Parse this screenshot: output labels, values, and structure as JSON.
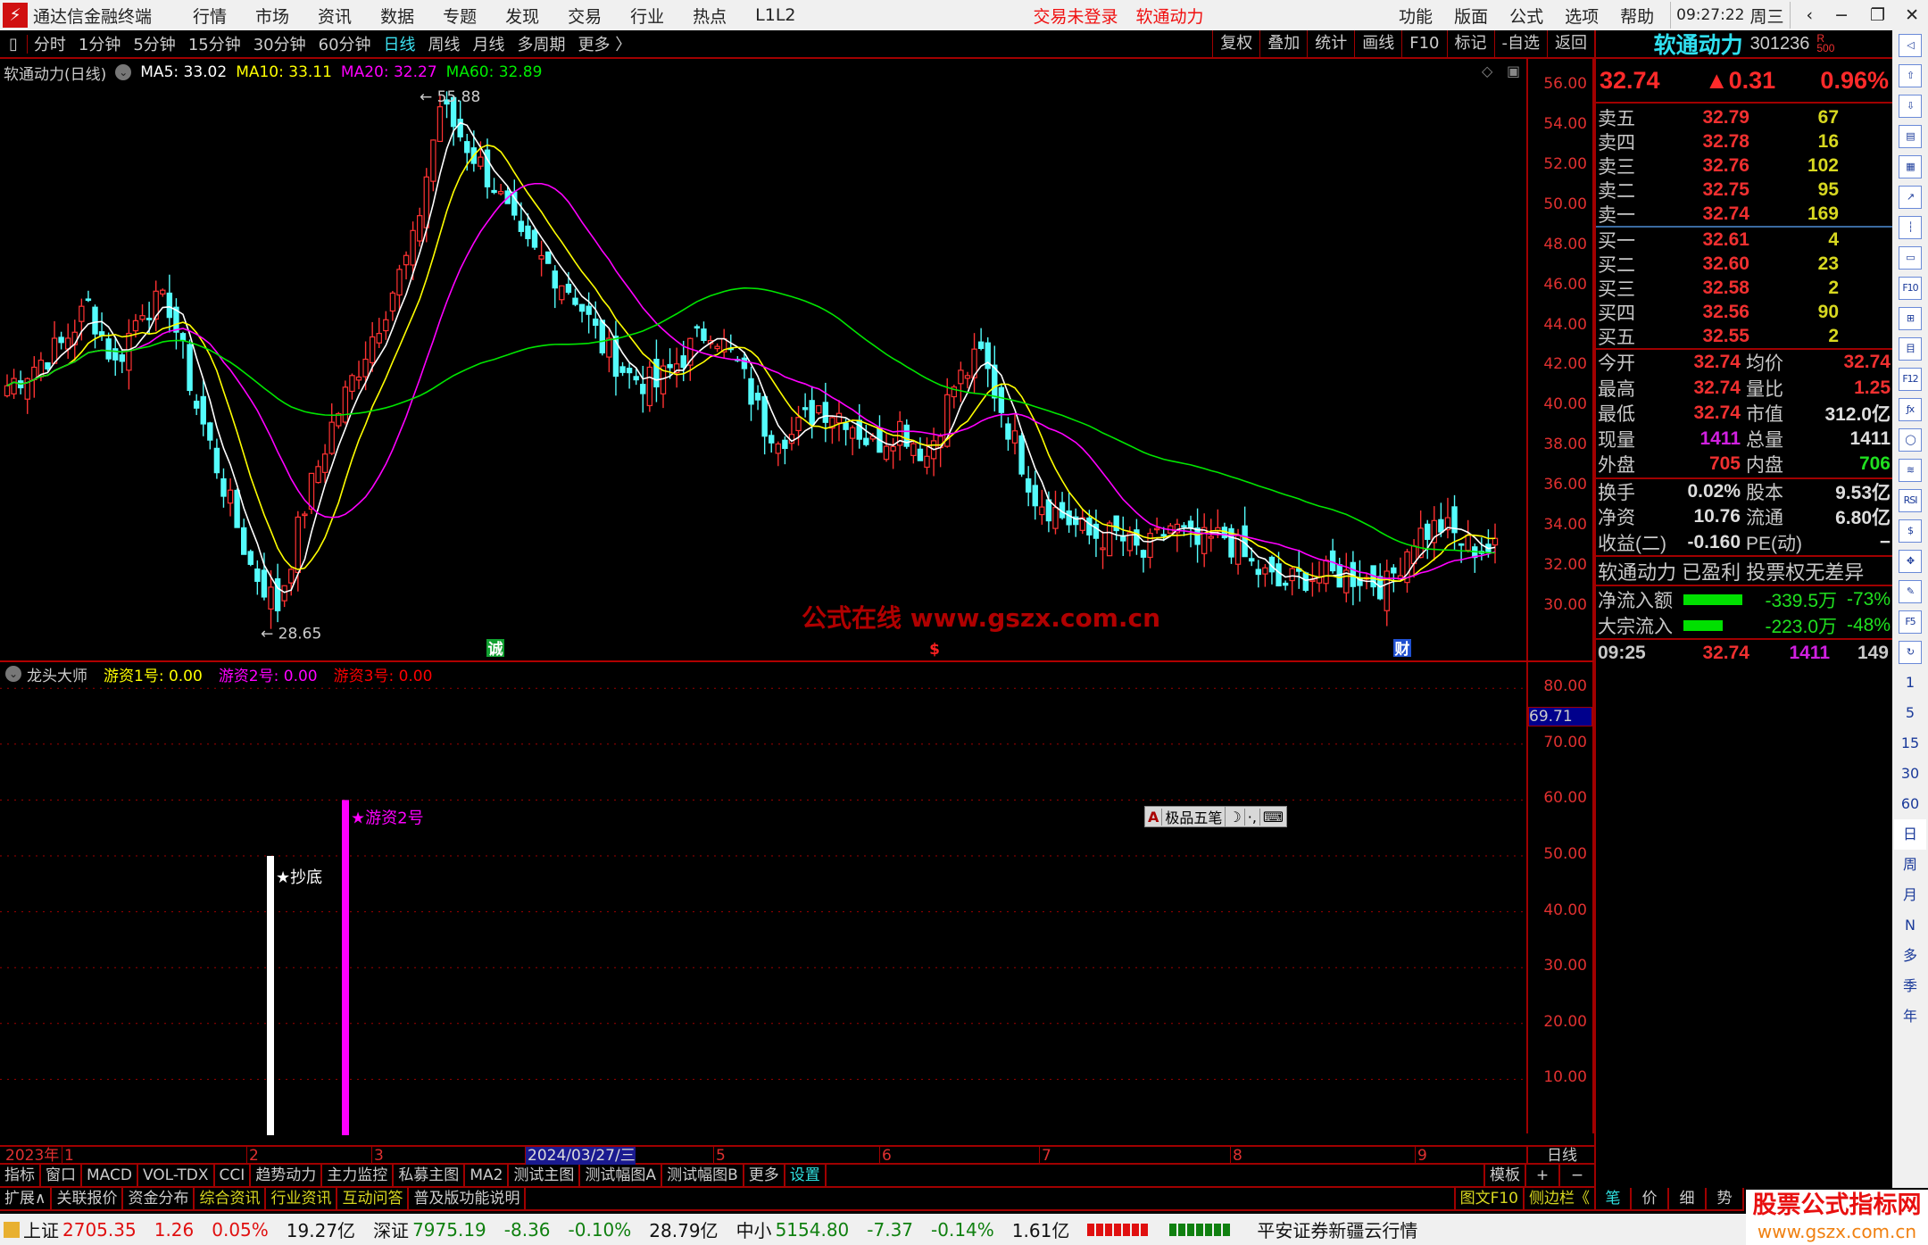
{
  "menubar": {
    "app_title": "通达信金融终端",
    "items": [
      "行情",
      "市场",
      "资讯",
      "数据",
      "专题",
      "发现",
      "交易",
      "行业",
      "热点",
      "L1L2"
    ],
    "login_status": "交易未登录",
    "stock_name": "软通动力",
    "right_items": [
      "功能",
      "版面",
      "公式",
      "选项",
      "帮助"
    ],
    "clock": "09:27:22",
    "weekday": "周三"
  },
  "toolbar": {
    "periods": [
      "分时",
      "1分钟",
      "5分钟",
      "15分钟",
      "30分钟",
      "60分钟",
      "日线",
      "周线",
      "月线",
      "多周期",
      "更多 〉"
    ],
    "active_period": "日线",
    "right_buttons": [
      "复权",
      "叠加",
      "统计",
      "画线",
      "F10",
      "标记",
      "-自选",
      "返回"
    ]
  },
  "chart_info": {
    "title": "软通动力(日线)",
    "ma5": "MA5: 33.02",
    "ma10": "MA10: 33.11",
    "ma20": "MA20: 32.27",
    "ma60": "MA60: 32.89"
  },
  "colors": {
    "up": "#ff3232",
    "down": "#54fcfc",
    "ma5": "#ffffff",
    "ma10": "#ffff00",
    "ma20": "#ff00ff",
    "ma60": "#00e600",
    "axis": "#a00000"
  },
  "chart_data": {
    "type": "candlestick",
    "price_axis": [
      "56.00",
      "54.00",
      "52.00",
      "50.00",
      "48.00",
      "46.00",
      "44.00",
      "42.00",
      "40.00",
      "38.00",
      "36.00",
      "34.00",
      "32.00",
      "30.00"
    ],
    "ylim": [
      28,
      57
    ],
    "closes": [
      41,
      42,
      43,
      45,
      42,
      45,
      45,
      40,
      36,
      32,
      30,
      35,
      39,
      42,
      45,
      48,
      55,
      53,
      51,
      48,
      47,
      45.5,
      43,
      41.5,
      41,
      42.5,
      44,
      42,
      39,
      38.5,
      40,
      39.5,
      38,
      39,
      37.5,
      41,
      42.5,
      39,
      35.5,
      34.5,
      33.5,
      33.5,
      32.5,
      34,
      33,
      33.5,
      32,
      31,
      31.5,
      31.5,
      31.5,
      31,
      33.5,
      34,
      33,
      32.74
    ],
    "high_label": "55.88",
    "low_label": "28.65",
    "signals": [
      {
        "text": "诚",
        "color": "#10a030"
      },
      {
        "text": "$",
        "color": "#ff2020"
      },
      {
        "text": "财",
        "color": "#2050d0"
      }
    ],
    "watermark": "公式在线  www.gszx.com.cn"
  },
  "indicator": {
    "name": "龙头大师",
    "v1": "游资1号: 0.00",
    "v2": "游资2号: 0.00",
    "v3": "游资3号: 0.00",
    "axis": [
      "80.00",
      "70.00",
      "60.00",
      "50.00",
      "40.00",
      "30.00",
      "20.00",
      "10.00"
    ],
    "cursor_value": "69.71",
    "bars": [
      {
        "label": "★抄底",
        "value": 50,
        "color": "#ffffff"
      },
      {
        "label": "★游资2号",
        "value": 60,
        "color": "#ff00ff"
      }
    ]
  },
  "date_axis": [
    "2023年",
    "1",
    "2",
    "3",
    "2024/03/27/三",
    "5",
    "6",
    "7",
    "8",
    "9"
  ],
  "period_label": "日线",
  "tabs1": [
    "指标",
    "窗口",
    "MACD",
    "VOL-TDX",
    "CCI",
    "趋势动力",
    "主力监控",
    "私募主图",
    "MA2",
    "测试主图",
    "测试幅图A",
    "测试幅图B",
    "更多",
    "设置"
  ],
  "tabs1_right": [
    "模板",
    "+",
    "−"
  ],
  "tabs2": [
    "扩展∧",
    "关联报价",
    "资金分布",
    "综合资讯",
    "行业资讯",
    "互动问答",
    "普及版功能说明"
  ],
  "tabs2_right": [
    "图文F10",
    "侧边栏《",
    "笔",
    "价",
    "细",
    "势"
  ],
  "ime": {
    "a": "A",
    "name": "极品五笔",
    "moon": "☽",
    "punct": "·,",
    "kbd": "⌨"
  },
  "quote": {
    "name": "软通动力",
    "code": "301236",
    "tag": "R",
    "tag2": "500",
    "price": "32.74",
    "change": "▲0.31",
    "pct": "0.96%",
    "sell": [
      {
        "l": "卖五",
        "p": "32.79",
        "v": "67"
      },
      {
        "l": "卖四",
        "p": "32.78",
        "v": "16"
      },
      {
        "l": "卖三",
        "p": "32.76",
        "v": "102"
      },
      {
        "l": "卖二",
        "p": "32.75",
        "v": "95"
      },
      {
        "l": "卖一",
        "p": "32.74",
        "v": "169"
      }
    ],
    "buy": [
      {
        "l": "买一",
        "p": "32.61",
        "v": "4"
      },
      {
        "l": "买二",
        "p": "32.60",
        "v": "23"
      },
      {
        "l": "买三",
        "p": "32.58",
        "v": "2"
      },
      {
        "l": "买四",
        "p": "32.56",
        "v": "90"
      },
      {
        "l": "买五",
        "p": "32.55",
        "v": "2"
      }
    ],
    "stats": [
      [
        "今开",
        "32.74",
        "均价",
        "32.74"
      ],
      [
        "最高",
        "32.74",
        "量比",
        "1.25"
      ],
      [
        "最低",
        "32.74",
        "市值",
        "312.0亿"
      ],
      [
        "现量",
        "1411",
        "总量",
        "1411"
      ],
      [
        "外盘",
        "705",
        "内盘",
        "706"
      ]
    ],
    "stats2": [
      [
        "换手",
        "0.02%",
        "股本",
        "9.53亿"
      ],
      [
        "净资",
        "10.76",
        "流通",
        "6.80亿"
      ],
      [
        "收益(二)",
        "-0.160",
        "PE(动)",
        "−"
      ]
    ],
    "profile": "软通动力 已盈利 投票权无差异",
    "flows": [
      {
        "l": "净流入额",
        "v": "-339.5万",
        "p": "-73%",
        "bar": 1.0
      },
      {
        "l": "大宗流入",
        "v": "-223.0万",
        "p": "-48%",
        "bar": 0.66
      }
    ],
    "tick": {
      "time": "09:25",
      "price": "32.74",
      "vol": "1411",
      "n": "149"
    }
  },
  "iconstrip": {
    "periods": [
      "1",
      "5",
      "15",
      "30",
      "60",
      "日",
      "周",
      "月",
      "N",
      "多",
      "季",
      "年"
    ]
  },
  "status": {
    "sh_name": "上证",
    "sh": "2705.35",
    "sh_chg": "1.26",
    "sh_pct": "0.05%",
    "sh_amt": "19.27亿",
    "sz_name": "深证",
    "sz": "7975.19",
    "sz_chg": "-8.36",
    "sz_pct": "-0.10%",
    "sz_amt": "28.79亿",
    "zx_name": "中小",
    "zx": "5154.80",
    "zx_chg": "-7.37",
    "zx_pct": "-0.14%",
    "zx_amt": "1.61亿",
    "server": "平安证券新疆云行情"
  },
  "watermark_logo": {
    "title": "股票公式指标网",
    "url": "www.gszx.com.cn"
  }
}
